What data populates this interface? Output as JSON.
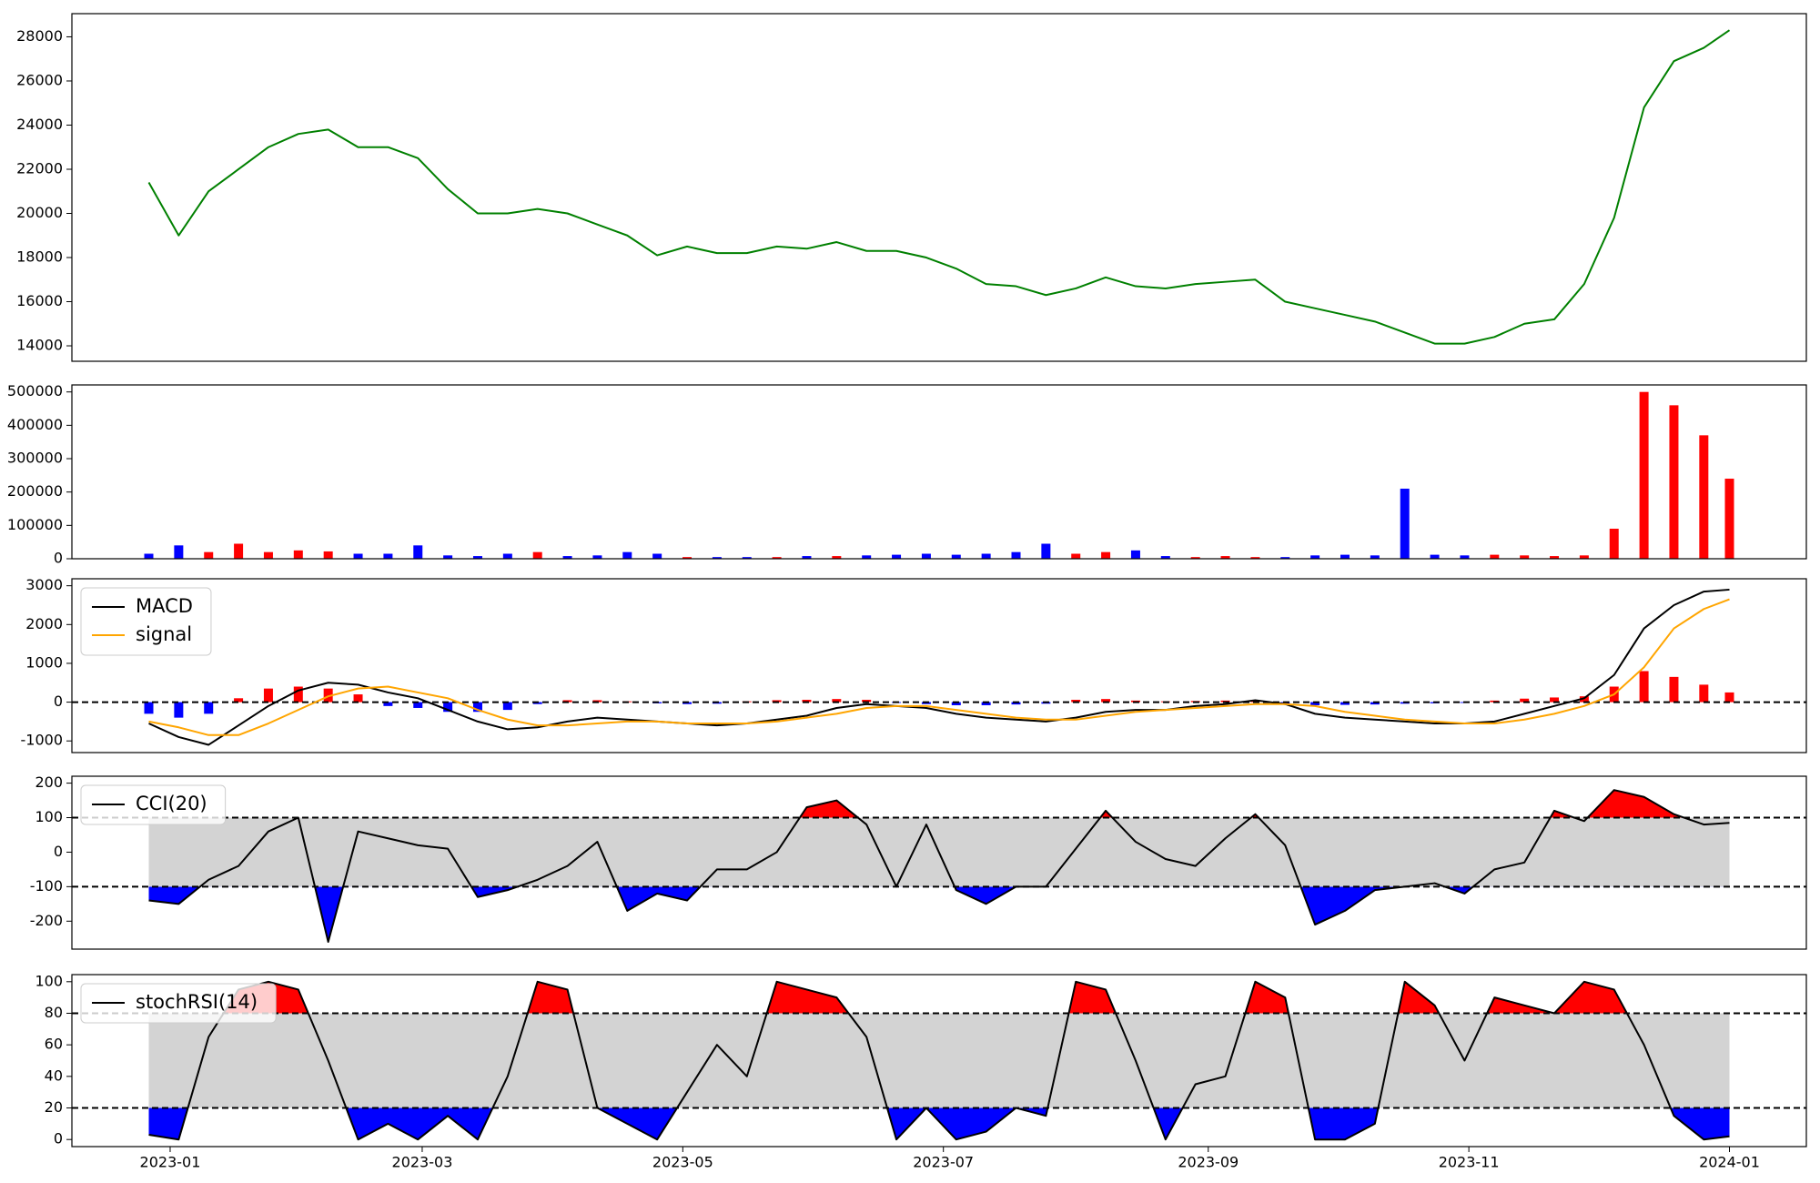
{
  "chart_data": [
    {
      "type": "line",
      "color": "#008000",
      "x": [
        "2022-12-27",
        "2023-01-03",
        "2023-01-10",
        "2023-01-17",
        "2023-01-24",
        "2023-01-31",
        "2023-02-07",
        "2023-02-14",
        "2023-02-21",
        "2023-02-28",
        "2023-03-07",
        "2023-03-14",
        "2023-03-21",
        "2023-03-28",
        "2023-04-04",
        "2023-04-11",
        "2023-04-18",
        "2023-04-25",
        "2023-05-02",
        "2023-05-09",
        "2023-05-16",
        "2023-05-23",
        "2023-05-30",
        "2023-06-06",
        "2023-06-13",
        "2023-06-20",
        "2023-06-27",
        "2023-07-04",
        "2023-07-11",
        "2023-07-18",
        "2023-07-25",
        "2023-08-01",
        "2023-08-08",
        "2023-08-15",
        "2023-08-22",
        "2023-08-29",
        "2023-09-05",
        "2023-09-12",
        "2023-09-19",
        "2023-09-26",
        "2023-10-03",
        "2023-10-10",
        "2023-10-17",
        "2023-10-24",
        "2023-10-31",
        "2023-11-07",
        "2023-11-14",
        "2023-11-21",
        "2023-11-28",
        "2023-12-05",
        "2023-12-12",
        "2023-12-19",
        "2023-12-26",
        "2024-01-01"
      ],
      "xlim": [
        "2022-12-09",
        "2024-01-19"
      ],
      "values": [
        21400,
        19000,
        21000,
        22000,
        23000,
        23600,
        23800,
        23000,
        23000,
        22500,
        21100,
        20000,
        20000,
        20200,
        20000,
        19500,
        19000,
        18100,
        18500,
        18200,
        18200,
        18500,
        18400,
        18700,
        18300,
        18300,
        18000,
        17500,
        16800,
        16700,
        16300,
        16600,
        17100,
        16700,
        16600,
        16800,
        16900,
        17000,
        16000,
        15700,
        15400,
        15100,
        14600,
        14100,
        14100,
        14400,
        15000,
        15200,
        16800,
        19800,
        24800,
        26900,
        27500,
        28300
      ],
      "ylim": [
        13300,
        29050
      ],
      "yticks": [
        14000,
        16000,
        18000,
        20000,
        22000,
        24000,
        26000,
        28000
      ]
    },
    {
      "type": "bar",
      "values": [
        15000,
        40000,
        20000,
        45000,
        20000,
        25000,
        22000,
        15000,
        15000,
        40000,
        10000,
        8000,
        15000,
        20000,
        8000,
        10000,
        20000,
        15000,
        5000,
        5000,
        5000,
        5000,
        8000,
        8000,
        10000,
        12000,
        15000,
        12000,
        15000,
        20000,
        45000,
        15000,
        20000,
        25000,
        8000,
        5000,
        8000,
        5000,
        5000,
        10000,
        12000,
        10000,
        210000,
        12000,
        10000,
        12000,
        10000,
        8000,
        10000,
        90000,
        500000,
        460000,
        370000,
        240000
      ],
      "colors": [
        "#0000ff",
        "#0000ff",
        "#ff0000",
        "#ff0000",
        "#ff0000",
        "#ff0000",
        "#ff0000",
        "#0000ff",
        "#0000ff",
        "#0000ff",
        "#0000ff",
        "#0000ff",
        "#0000ff",
        "#ff0000",
        "#0000ff",
        "#0000ff",
        "#0000ff",
        "#0000ff",
        "#ff0000",
        "#0000ff",
        "#0000ff",
        "#ff0000",
        "#0000ff",
        "#ff0000",
        "#0000ff",
        "#0000ff",
        "#0000ff",
        "#0000ff",
        "#0000ff",
        "#0000ff",
        "#0000ff",
        "#ff0000",
        "#ff0000",
        "#0000ff",
        "#0000ff",
        "#ff0000",
        "#ff0000",
        "#ff0000",
        "#0000ff",
        "#0000ff",
        "#0000ff",
        "#0000ff",
        "#0000ff",
        "#0000ff",
        "#0000ff",
        "#ff0000",
        "#ff0000",
        "#ff0000",
        "#ff0000",
        "#ff0000",
        "#ff0000",
        "#ff0000",
        "#ff0000",
        "#ff0000"
      ],
      "ylim": [
        0,
        521000
      ],
      "yticks": [
        0,
        100000,
        200000,
        300000,
        400000,
        500000
      ]
    },
    {
      "type": "macd",
      "legend": "upper left",
      "series": [
        {
          "name": "MACD",
          "color": "#000000",
          "values": [
            -550,
            -900,
            -1100,
            -600,
            -100,
            300,
            500,
            450,
            250,
            100,
            -200,
            -500,
            -700,
            -650,
            -500,
            -400,
            -450,
            -500,
            -550,
            -600,
            -550,
            -450,
            -350,
            -150,
            -50,
            -100,
            -150,
            -300,
            -400,
            -450,
            -500,
            -400,
            -250,
            -200,
            -200,
            -100,
            -50,
            50,
            -50,
            -300,
            -400,
            -450,
            -500,
            -550,
            -550,
            -500,
            -300,
            -100,
            100,
            700,
            1900,
            2500,
            2850,
            2900
          ]
        },
        {
          "name": "signal",
          "color": "#ffa500",
          "values": [
            -500,
            -650,
            -850,
            -850,
            -550,
            -200,
            150,
            350,
            400,
            250,
            100,
            -200,
            -450,
            -600,
            -600,
            -550,
            -500,
            -500,
            -550,
            -550,
            -550,
            -500,
            -400,
            -300,
            -150,
            -100,
            -100,
            -200,
            -300,
            -400,
            -450,
            -450,
            -350,
            -250,
            -200,
            -150,
            -100,
            -50,
            -50,
            -100,
            -250,
            -350,
            -450,
            -500,
            -550,
            -550,
            -450,
            -300,
            -100,
            200,
            900,
            1900,
            2400,
            2650
          ]
        }
      ],
      "histogram": {
        "values": [
          -300,
          -400,
          -300,
          100,
          350,
          400,
          350,
          200,
          -100,
          -150,
          -250,
          -250,
          -200,
          -50,
          50,
          50,
          20,
          -30,
          -50,
          -40,
          20,
          50,
          60,
          80,
          60,
          -20,
          -50,
          -80,
          -80,
          -60,
          -40,
          60,
          80,
          40,
          20,
          30,
          40,
          30,
          -50,
          -80,
          -70,
          -60,
          -40,
          -30,
          -20,
          40,
          90,
          120,
          150,
          400,
          800,
          650,
          450,
          250
        ],
        "up_color": "#ff0000",
        "down_color": "#0000ff"
      },
      "hlines": [
        0
      ],
      "ylim": [
        -1300,
        3180
      ],
      "yticks": [
        -1000,
        0,
        1000,
        2000,
        3000
      ]
    },
    {
      "type": "oscillator",
      "legend": "upper left",
      "series": [
        {
          "name": "CCI(20)",
          "color": "#000000",
          "values": [
            -140,
            -150,
            -80,
            -40,
            60,
            100,
            -260,
            60,
            40,
            20,
            10,
            -130,
            -110,
            -80,
            -40,
            30,
            -170,
            -120,
            -140,
            -50,
            -50,
            0,
            130,
            150,
            80,
            -100,
            80,
            -110,
            -150,
            -100,
            -100,
            10,
            120,
            30,
            -20,
            -40,
            40,
            110,
            20,
            -210,
            -170,
            -110,
            -100,
            -90,
            -120,
            -50,
            -30,
            120,
            90,
            180,
            160,
            110,
            80,
            85
          ]
        }
      ],
      "levels": [
        -100,
        100
      ],
      "band_color": "#d3d3d3",
      "above_color": "#ff0000",
      "below_color": "#0000ff",
      "ylim": [
        -281,
        220
      ],
      "yticks": [
        -200,
        -100,
        0,
        100,
        200
      ]
    },
    {
      "type": "oscillator",
      "legend": "upper left",
      "series": [
        {
          "name": "stochRSI(14)",
          "color": "#000000",
          "values": [
            3,
            0,
            65,
            95,
            100,
            95,
            50,
            0,
            10,
            0,
            15,
            0,
            40,
            100,
            95,
            20,
            10,
            0,
            30,
            60,
            40,
            100,
            95,
            90,
            65,
            0,
            20,
            0,
            5,
            20,
            15,
            100,
            95,
            50,
            0,
            35,
            40,
            100,
            90,
            0,
            0,
            10,
            100,
            85,
            50,
            90,
            85,
            80,
            100,
            95,
            60,
            15,
            0,
            2
          ]
        }
      ],
      "levels": [
        20,
        80
      ],
      "band_color": "#d3d3d3",
      "above_color": "#ff0000",
      "below_color": "#0000ff",
      "ylim": [
        -4.5,
        104.5
      ],
      "yticks": [
        0,
        20,
        40,
        60,
        80,
        100
      ],
      "xticks": [
        "2023-01",
        "2023-03",
        "2023-05",
        "2023-07",
        "2023-09",
        "2023-11",
        "2024-01"
      ]
    }
  ]
}
